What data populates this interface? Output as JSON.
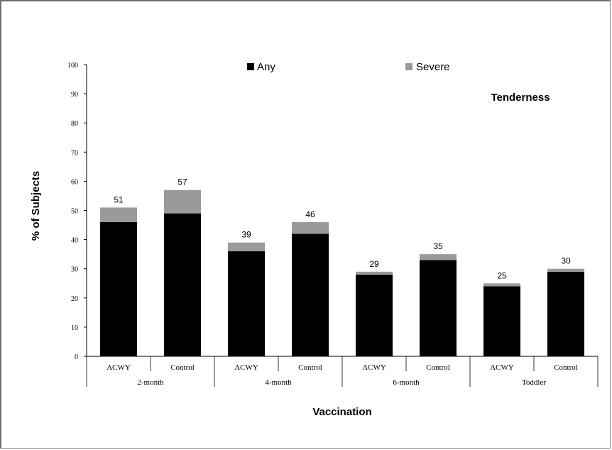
{
  "chart_data": {
    "type": "bar",
    "stacked": true,
    "title": "Tenderness",
    "xlabel": "Vaccination",
    "ylabel": "% of Subjects",
    "ylim": [
      0,
      100
    ],
    "yticks": [
      0,
      10,
      20,
      30,
      40,
      50,
      60,
      70,
      80,
      90,
      100
    ],
    "groups": [
      "2-month",
      "4-month",
      "6-month",
      "Toddler"
    ],
    "categories": [
      "ACWY",
      "Control",
      "ACWY",
      "Control",
      "ACWY",
      "Control",
      "ACWY",
      "Control"
    ],
    "series": [
      {
        "name": "Any",
        "color": "#000000",
        "values": [
          46,
          49,
          36,
          42,
          28,
          33,
          24,
          29
        ]
      },
      {
        "name": "Severe",
        "color": "#9a9a9a",
        "values": [
          5,
          8,
          3,
          4,
          1,
          2,
          1,
          1
        ]
      }
    ],
    "totals": [
      "51",
      "57",
      "39",
      "46",
      "29",
      "35",
      "25",
      "30"
    ],
    "legend_position": "top",
    "grid": false
  }
}
